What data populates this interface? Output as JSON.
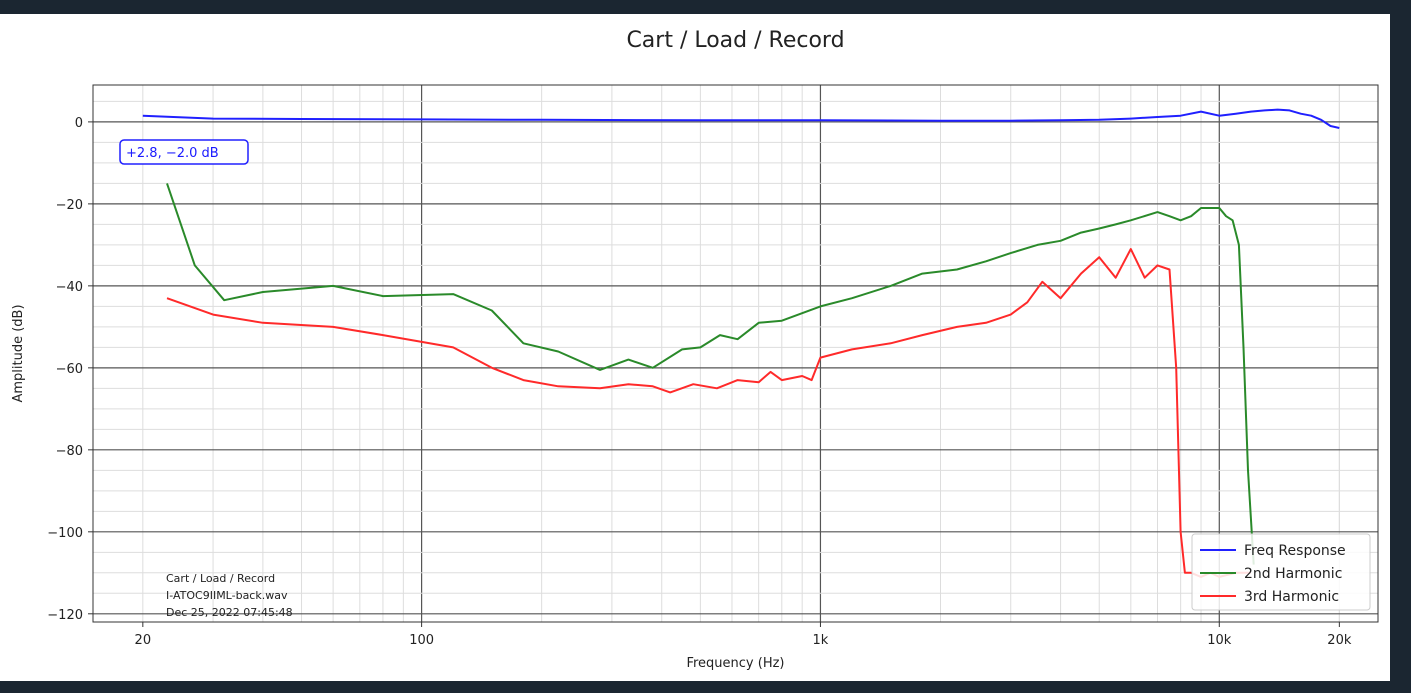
{
  "chart_data": {
    "type": "line",
    "title": "Cart / Load / Record",
    "xlabel": "Frequency (Hz)",
    "ylabel": "Amplitude (dB)",
    "xscale": "log",
    "xlim": [
      15,
      25000
    ],
    "ylim": [
      -122,
      9
    ],
    "xticks": [
      {
        "value": 20,
        "label": "20"
      },
      {
        "value": 100,
        "label": "100"
      },
      {
        "value": 1000,
        "label": "1k"
      },
      {
        "value": 10000,
        "label": "10k"
      },
      {
        "value": 20000,
        "label": "20k"
      }
    ],
    "yticks": [
      0,
      -20,
      -40,
      -60,
      -80,
      -100,
      -120
    ],
    "grid": true,
    "legend_position": "bottom-right",
    "series": [
      {
        "name": "Freq Response",
        "color": "#2020ff",
        "x": [
          20,
          30,
          50,
          100,
          200,
          500,
          1000,
          2000,
          3000,
          4000,
          5000,
          6000,
          7000,
          8000,
          9000,
          10000,
          11000,
          12000,
          13000,
          14000,
          15000,
          16000,
          17000,
          18000,
          19000,
          20000
        ],
        "y": [
          1.5,
          0.8,
          0.7,
          0.6,
          0.5,
          0.4,
          0.4,
          0.3,
          0.3,
          0.4,
          0.5,
          0.8,
          1.2,
          1.5,
          2.5,
          1.5,
          2.0,
          2.5,
          2.8,
          3.0,
          2.8,
          2.0,
          1.5,
          0.5,
          -1.0,
          -1.5
        ]
      },
      {
        "name": "2nd Harmonic",
        "color": "#2a8a2a",
        "x": [
          23,
          27,
          32,
          40,
          60,
          80,
          120,
          150,
          180,
          220,
          280,
          330,
          380,
          450,
          500,
          560,
          620,
          700,
          800,
          1000,
          1200,
          1500,
          1800,
          2200,
          2600,
          3000,
          3500,
          4000,
          4500,
          5000,
          5500,
          6000,
          7000,
          7500,
          8000,
          8500,
          9000,
          9500,
          10000,
          10400,
          10800,
          11200,
          11500,
          11800,
          12200
        ],
        "y": [
          -15,
          -35,
          -43.5,
          -41.5,
          -40,
          -42.5,
          -42,
          -46,
          -54,
          -56,
          -60.5,
          -58,
          -60,
          -55.5,
          -55,
          -52,
          -53,
          -49,
          -48.5,
          -45,
          -43,
          -40,
          -37,
          -36,
          -34,
          -32,
          -30,
          -29,
          -27,
          -26,
          -25,
          -24,
          -22,
          -23,
          -24,
          -23,
          -21,
          -21,
          -21,
          -23,
          -24,
          -30,
          -55,
          -85,
          -108
        ]
      },
      {
        "name": "3rd Harmonic",
        "color": "#ff2a2a",
        "x": [
          23,
          30,
          40,
          60,
          80,
          120,
          150,
          180,
          220,
          280,
          330,
          380,
          420,
          480,
          550,
          620,
          700,
          750,
          800,
          900,
          950,
          1000,
          1200,
          1500,
          1800,
          2200,
          2600,
          3000,
          3300,
          3600,
          4000,
          4500,
          5000,
          5500,
          6000,
          6500,
          7000,
          7500,
          7800,
          8000,
          8200,
          8500,
          9000,
          9500,
          10000,
          11000,
          12000
        ],
        "y": [
          -43,
          -47,
          -49,
          -50,
          -52,
          -55,
          -60,
          -63,
          -64.5,
          -65,
          -64,
          -64.5,
          -66,
          -64,
          -65,
          -63,
          -63.5,
          -61,
          -63,
          -62,
          -63,
          -57.5,
          -55.5,
          -54,
          -52,
          -50,
          -49,
          -47,
          -44,
          -39,
          -43,
          -37,
          -33,
          -38,
          -31,
          -38,
          -35,
          -36,
          -60,
          -100,
          -110,
          -110,
          -111,
          -110,
          -111,
          -110,
          -110
        ]
      }
    ]
  },
  "badge": {
    "label": "+2.8, −2.0 dB"
  },
  "annotation": {
    "line1": "Cart / Load / Record",
    "line2": "I-ATOC9IIML-back.wav",
    "line3": "Dec 25, 2022 07:45:48"
  }
}
